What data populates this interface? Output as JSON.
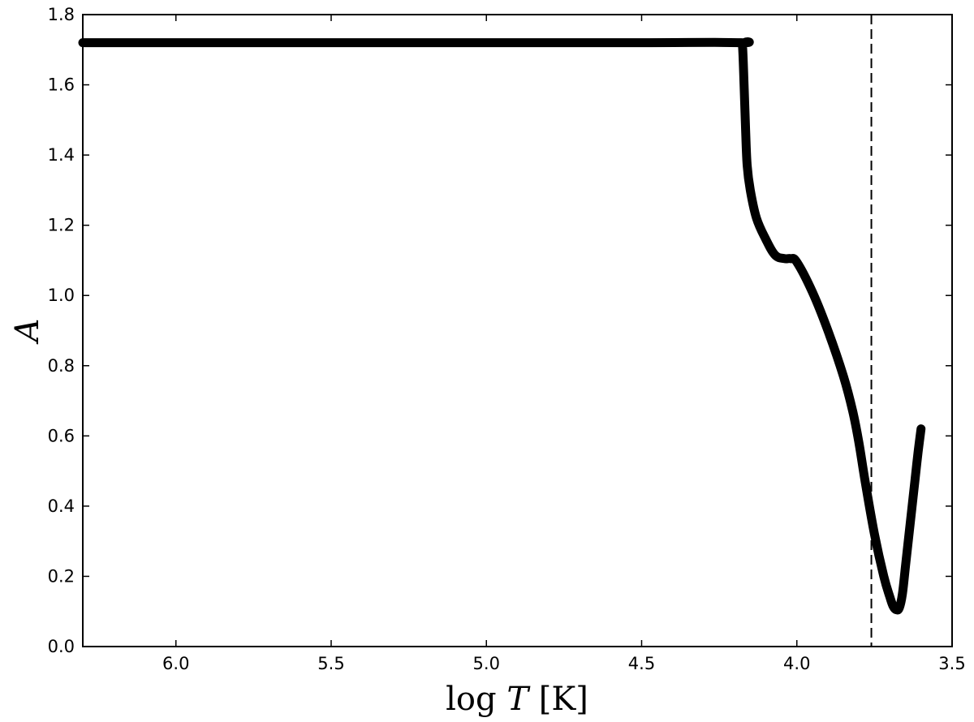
{
  "chart_data": {
    "type": "line",
    "title": "",
    "xlabel": "log T [K]",
    "xlabel_parts": {
      "prefix": "log ",
      "var": "T",
      "unit": " [K]"
    },
    "ylabel": "A",
    "xlim": [
      6.3,
      3.5
    ],
    "ylim": [
      0.0,
      1.8
    ],
    "x_ticks": [
      6.0,
      5.5,
      5.0,
      4.5,
      4.0,
      3.5
    ],
    "x_tick_labels": [
      "6.0",
      "5.5",
      "5.0",
      "4.5",
      "4.0",
      "3.5"
    ],
    "y_ticks": [
      0.0,
      0.2,
      0.4,
      0.6,
      0.8,
      1.0,
      1.2,
      1.4,
      1.6,
      1.8
    ],
    "y_tick_labels": [
      "0.0",
      "0.2",
      "0.4",
      "0.6",
      "0.8",
      "1.0",
      "1.2",
      "1.4",
      "1.6",
      "1.8"
    ],
    "grid": false,
    "legend": "none",
    "line_color": "#000000",
    "series": [
      {
        "x": [
          6.3,
          5.5,
          5.0,
          4.5,
          4.18,
          4.175,
          4.17,
          4.165,
          4.16,
          4.15,
          4.13,
          4.1,
          4.07,
          4.04,
          4.02,
          4.0,
          3.95,
          3.9,
          3.85,
          3.82,
          3.8,
          3.78,
          3.75,
          3.72,
          3.7,
          3.69,
          3.68,
          3.67,
          3.66,
          3.65,
          3.64,
          3.63,
          3.62,
          3.61,
          3.6
        ],
        "y": [
          1.72,
          1.72,
          1.72,
          1.72,
          1.72,
          1.71,
          1.6,
          1.47,
          1.37,
          1.3,
          1.22,
          1.16,
          1.115,
          1.105,
          1.105,
          1.095,
          1.01,
          0.9,
          0.77,
          0.67,
          0.58,
          0.47,
          0.32,
          0.2,
          0.14,
          0.115,
          0.105,
          0.11,
          0.15,
          0.23,
          0.31,
          0.39,
          0.47,
          0.55,
          0.62
        ]
      }
    ],
    "reference_lines": [
      {
        "orientation": "vertical",
        "x": 3.76,
        "style": "dashed",
        "color": "#000000"
      }
    ]
  }
}
